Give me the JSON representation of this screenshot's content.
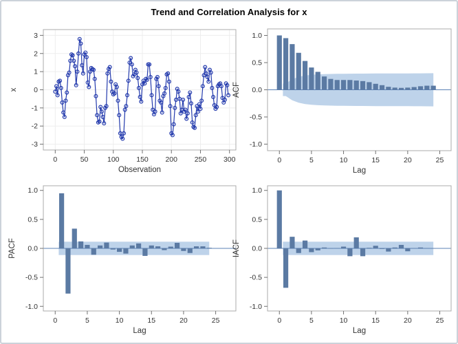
{
  "title": "Trend and Correlation Analysis for x",
  "colors": {
    "series_line": "#2239ac",
    "series_marker": "#2239ac",
    "bar_fill": "#5b7aa3",
    "band_fill": "#bed3ea",
    "zero_line": "#5b80b5",
    "frame": "#ababab",
    "grid": "#ededed",
    "tick_mark": "#707070",
    "tick_label": "#333333",
    "axis_label": "#333333",
    "background": "#ffffff",
    "figure_border": "#ccd2da"
  },
  "chart_data": [
    {
      "id": "series",
      "type": "line",
      "title": "",
      "xlabel": "Observation",
      "ylabel": "x",
      "xlim": [
        -20.5,
        311
      ],
      "ylim": [
        -3.32,
        3.32
      ],
      "xticks": [
        0,
        50,
        100,
        150,
        200,
        250,
        300
      ],
      "xtick_labels": [
        "0",
        "50",
        "100",
        "150",
        "200",
        "250",
        "300"
      ],
      "yticks": [
        -3,
        -2,
        -1,
        0,
        1,
        2,
        3
      ],
      "ytick_labels": [
        "-3",
        "-2",
        "-1",
        "0",
        "1",
        "2",
        "3"
      ],
      "grid": true,
      "x_start": 0,
      "x_step": 2,
      "y": [
        -0.1,
        0.2,
        -0.3,
        0.45,
        0.5,
        0.1,
        -0.7,
        -1.25,
        -1.5,
        -0.6,
        -0.15,
        0.8,
        0.95,
        1.6,
        1.95,
        1.9,
        1.6,
        1.3,
        0.25,
        1.0,
        2.0,
        2.8,
        2.55,
        1.35,
        0.9,
        1.95,
        2.05,
        1.8,
        0.4,
        0.15,
        1.0,
        1.2,
        1.15,
        1.1,
        0.6,
        -0.35,
        -1.4,
        -1.8,
        -1.75,
        -0.95,
        -1.2,
        -1.5,
        -1.85,
        -1.0,
        -0.9,
        0.9,
        1.15,
        1.25,
        0.45,
        -0.1,
        -0.25,
        -0.2,
        0.3,
        0.15,
        -0.6,
        -1.4,
        -2.4,
        -2.6,
        -2.7,
        -2.4,
        -1.1,
        -0.9,
        -0.3,
        0.5,
        1.5,
        1.75,
        1.4,
        0.75,
        0.85,
        1.1,
        0.95,
        0.65,
        0.1,
        -0.4,
        -0.65,
        0.3,
        0.5,
        0.35,
        0.6,
        0.55,
        1.4,
        1.4,
        0.7,
        -0.3,
        -1.1,
        -1.35,
        -1.2,
        0.6,
        0.7,
        0.2,
        -0.6,
        -0.7,
        -1.25,
        -0.35,
        -0.2,
        0.1,
        0.85,
        0.9,
        0.45,
        -0.9,
        -2.4,
        -2.5,
        -1.9,
        -1.0,
        -0.55,
        0.05,
        -0.1,
        -0.5,
        -1.3,
        -1.1,
        -0.55,
        -1.2,
        -1.1,
        -1.6,
        -1.3,
        -0.4,
        -0.15,
        -0.75,
        -1.8,
        -2.05,
        -2.1,
        -1.4,
        -0.9,
        -1.2,
        -0.8,
        -1.05,
        -0.6,
        0.2,
        0.8,
        1.25,
        0.9,
        0.7,
        0.45,
        1.1,
        0.95,
        0.1,
        -0.4,
        -0.85,
        -1.05,
        -0.95,
        0.2,
        0.3,
        0.35,
        0.2,
        -0.45,
        -0.7,
        -0.55,
        0.35,
        0.25,
        -0.3
      ]
    },
    {
      "id": "acf",
      "type": "bar",
      "title": "",
      "xlabel": "Lag",
      "ylabel": "ACF",
      "xlim": [
        -1.85,
        26.77
      ],
      "ylim": [
        -1.12,
        1.12
      ],
      "xticks": [
        0,
        5,
        10,
        15,
        20,
        25
      ],
      "xtick_labels": [
        "0",
        "5",
        "10",
        "15",
        "20",
        "25"
      ],
      "yticks": [
        -1.0,
        -0.5,
        0.0,
        0.5,
        1.0
      ],
      "ytick_labels": [
        "-1.0",
        "-0.5",
        "0.0",
        "0.5",
        "1.0"
      ],
      "grid": false,
      "lag_start": 0,
      "values": [
        1.0,
        0.95,
        0.84,
        0.68,
        0.53,
        0.41,
        0.33,
        0.245,
        0.2,
        0.18,
        0.18,
        0.18,
        0.17,
        0.16,
        0.14,
        0.11,
        0.085,
        0.055,
        0.04,
        0.035,
        0.04,
        0.05,
        0.065,
        0.075,
        0.075
      ],
      "band": {
        "kind": "varying",
        "from_lag": 0.55,
        "to_lag": 24,
        "lags": [
          1,
          2,
          3,
          4,
          5,
          6,
          7,
          8,
          9,
          10,
          11,
          12,
          13,
          14,
          15,
          16,
          17,
          18,
          19,
          20,
          21,
          22,
          23,
          24
        ],
        "upper": [
          0.115,
          0.193,
          0.237,
          0.262,
          0.276,
          0.284,
          0.289,
          0.291,
          0.293,
          0.295,
          0.296,
          0.297,
          0.298,
          0.299,
          0.3,
          0.3,
          0.3,
          0.301,
          0.301,
          0.301,
          0.302,
          0.303,
          0.304,
          0.305
        ]
      }
    },
    {
      "id": "pacf",
      "type": "bar",
      "title": "",
      "xlabel": "Lag",
      "ylabel": "PACF",
      "xlim": [
        -1.85,
        28.15
      ],
      "ylim": [
        -1.08,
        1.08
      ],
      "xticks": [
        0,
        5,
        10,
        15,
        20,
        25
      ],
      "xtick_labels": [
        "0",
        "5",
        "10",
        "15",
        "20",
        "25"
      ],
      "yticks": [
        -1.0,
        -0.5,
        0.0,
        0.5,
        1.0
      ],
      "ytick_labels": [
        "-1.0",
        "-0.5",
        "0.0",
        "0.5",
        "1.0"
      ],
      "grid": false,
      "lag_start": 1,
      "values": [
        0.95,
        -0.78,
        0.34,
        0.12,
        0.06,
        -0.11,
        0.05,
        0.1,
        -0.02,
        -0.06,
        -0.09,
        0.05,
        0.085,
        -0.13,
        0.05,
        0.035,
        -0.03,
        0.03,
        0.095,
        -0.045,
        -0.08,
        0.035,
        0.035,
        0.01
      ],
      "band": {
        "kind": "constant",
        "from_lag": 0.55,
        "to_lag": 24,
        "level": 0.115
      }
    },
    {
      "id": "iacf",
      "type": "bar",
      "title": "",
      "xlabel": "Lag",
      "ylabel": "IACF",
      "xlim": [
        -1.85,
        26.77
      ],
      "ylim": [
        -1.08,
        1.08
      ],
      "xticks": [
        0,
        5,
        10,
        15,
        20,
        25
      ],
      "xtick_labels": [
        "0",
        "5",
        "10",
        "15",
        "20",
        "25"
      ],
      "yticks": [
        -1.0,
        -0.5,
        0.0,
        0.5,
        1.0
      ],
      "ytick_labels": [
        "-1.0",
        "-0.5",
        "0.0",
        "0.5",
        "1.0"
      ],
      "grid": false,
      "lag_start": 0,
      "values": [
        1.0,
        -0.68,
        0.2,
        -0.08,
        0.135,
        -0.065,
        -0.035,
        0.015,
        0.0,
        0.005,
        0.03,
        -0.135,
        0.19,
        -0.135,
        0.01,
        0.045,
        -0.01,
        -0.055,
        0.015,
        0.06,
        -0.05,
        0.005,
        0.015,
        0.005,
        0.0
      ],
      "band": {
        "kind": "constant",
        "from_lag": 0.55,
        "to_lag": 24,
        "level": 0.115
      }
    }
  ]
}
